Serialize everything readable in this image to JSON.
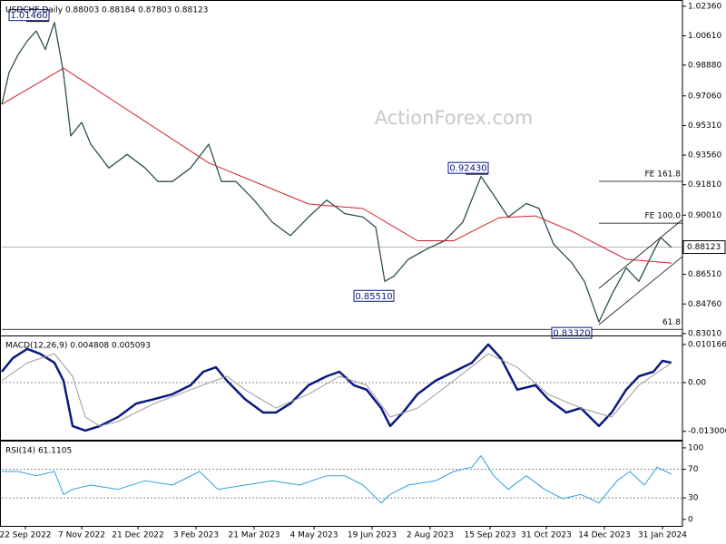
{
  "chart_data": [
    {
      "type": "line",
      "title": "USDCHF,Daily  0.88003 0.88184 0.87803 0.88123",
      "watermark": "ActionForex.com",
      "xlim": [
        0,
        375
      ],
      "ylim": [
        0.829,
        1.0262
      ],
      "yticks": [
        {
          "value": 1.0236,
          "label": "1.02360"
        },
        {
          "value": 1.0061,
          "label": "1.00610"
        },
        {
          "value": 0.9888,
          "label": "0.98880"
        },
        {
          "value": 0.9706,
          "label": "0.97060"
        },
        {
          "value": 0.9531,
          "label": "0.95310"
        },
        {
          "value": 0.9356,
          "label": "0.93560"
        },
        {
          "value": 0.9181,
          "label": "0.91810"
        },
        {
          "value": 0.9001,
          "label": "0.90010"
        },
        {
          "value": 0.8651,
          "label": "0.86510"
        },
        {
          "value": 0.8476,
          "label": "0.84760"
        },
        {
          "value": 0.8301,
          "label": "0.83010"
        }
      ],
      "series": [
        {
          "color": "#2f4f4f",
          "x": [
            0,
            4,
            9,
            14,
            19,
            24,
            29,
            34,
            38,
            44,
            49,
            59,
            69,
            79,
            86,
            94,
            104,
            114,
            121,
            129,
            139,
            149,
            159,
            169,
            179,
            189,
            199,
            206,
            211,
            216,
            224,
            234,
            244,
            254,
            264,
            271,
            279,
            289,
            296,
            304,
            314,
            321,
            329,
            336,
            344,
            351,
            356,
            363,
            369
          ],
          "values": [
            0.9656,
            0.9844,
            0.995,
            1.003,
            1.009,
            0.998,
            1.014,
            0.984,
            0.947,
            0.955,
            0.942,
            0.928,
            0.936,
            0.928,
            0.92,
            0.92,
            0.928,
            0.942,
            0.92,
            0.92,
            0.909,
            0.896,
            0.888,
            0.899,
            0.909,
            0.901,
            0.899,
            0.893,
            0.861,
            0.864,
            0.874,
            0.88,
            0.885,
            0.896,
            0.923,
            0.912,
            0.899,
            0.907,
            0.904,
            0.883,
            0.872,
            0.861,
            0.837,
            0.853,
            0.869,
            0.861,
            0.872,
            0.887,
            0.881
          ]
        },
        {
          "color": "#d0202a",
          "x": [
            0,
            34,
            114,
            169,
            199,
            229,
            249,
            274,
            294,
            314,
            344,
            369
          ],
          "values": [
            0.9656,
            0.987,
            0.931,
            0.9067,
            0.904,
            0.885,
            0.885,
            0.8986,
            0.8997,
            0.8906,
            0.874,
            0.8718
          ]
        }
      ],
      "channel": [
        {
          "x": [
            329,
            375
          ],
          "values": [
            0.8568,
            0.8975
          ]
        },
        {
          "x": [
            329,
            375
          ],
          "values": [
            0.8354,
            0.8756
          ]
        }
      ],
      "annotations": [
        {
          "label": "1.01460",
          "x": 15,
          "value": 1.0146
        },
        {
          "label": "0.92430",
          "x": 257,
          "value": 0.9243
        },
        {
          "label": "0.85510",
          "x": 205,
          "value": 0.8551
        },
        {
          "label": "0.83320",
          "x": 314,
          "value": 0.8332
        }
      ],
      "levels": [
        {
          "label": "FE 161.8",
          "value": 0.9201,
          "x": 329
        },
        {
          "label": "FE 100.0",
          "value": 0.8954,
          "x": 329
        },
        {
          "label": "61.8",
          "value": 0.8326,
          "x": 0
        }
      ],
      "last_price": {
        "value": 0.88123,
        "label": "0.88123"
      }
    },
    {
      "type": "line",
      "title": "MACD(12,26,9) 0.004808 0.005093",
      "xlim": [
        0,
        375
      ],
      "ylim": [
        -0.01525,
        0.0121
      ],
      "yticks": [
        0.010166,
        {
          "value": 0,
          "label": "0.00"
        },
        -0.013006
      ],
      "levels": [
        {
          "value": 0
        }
      ],
      "series": [
        {
          "color": "#0a1a80",
          "width": 2.5,
          "x": [
            0,
            6,
            14,
            21,
            29,
            34,
            39,
            46,
            54,
            64,
            74,
            84,
            94,
            104,
            111,
            118,
            124,
            134,
            144,
            151,
            159,
            169,
            179,
            186,
            194,
            201,
            209,
            214,
            221,
            229,
            239,
            249,
            259,
            268,
            275,
            284,
            294,
            301,
            311,
            319,
            329,
            336,
            344,
            351,
            359,
            364,
            369
          ],
          "values": [
            0.0029,
            0.0065,
            0.009,
            0.0077,
            0.0053,
            0.0005,
            -0.0116,
            -0.0128,
            -0.0116,
            -0.0092,
            -0.0056,
            -0.0044,
            -0.0031,
            -0.0007,
            0.0029,
            0.0041,
            0.0005,
            -0.0044,
            -0.008,
            -0.008,
            -0.0056,
            -0.0007,
            0.0017,
            0.0029,
            -0.0007,
            -0.0019,
            -0.0068,
            -0.0116,
            -0.008,
            -0.0031,
            0.0005,
            0.0029,
            0.0053,
            0.0102,
            0.0065,
            -0.0019,
            -0.0007,
            -0.0044,
            -0.008,
            -0.0068,
            -0.0116,
            -0.008,
            -0.0019,
            0.0017,
            0.0029,
            0.0058,
            0.0053
          ]
        },
        {
          "color": "#9a9a9a",
          "width": 1,
          "x": [
            0,
            14,
            29,
            39,
            46,
            54,
            64,
            84,
            104,
            124,
            134,
            151,
            169,
            186,
            201,
            214,
            229,
            249,
            268,
            284,
            301,
            319,
            336,
            351,
            369
          ],
          "values": [
            0.0005,
            0.0053,
            0.0077,
            0.0017,
            -0.0092,
            -0.0116,
            -0.0104,
            -0.0056,
            -0.0019,
            0.0017,
            -0.0019,
            -0.0068,
            -0.0031,
            0.0017,
            -0.0007,
            -0.0092,
            -0.0068,
            0.0005,
            0.0077,
            0.0041,
            -0.0031,
            -0.0068,
            -0.0092,
            -0.0007,
            0.0053
          ]
        }
      ]
    },
    {
      "type": "line",
      "title": "RSI(14) 61.1105",
      "xlim": [
        0,
        375
      ],
      "ylim": [
        -9,
        107.5
      ],
      "yticks": [
        100,
        70,
        30,
        0
      ],
      "levels": [
        {
          "value": 70
        },
        {
          "value": 30
        }
      ],
      "series": [
        {
          "color": "#2ea0e0",
          "width": 1,
          "x": [
            0,
            9,
            19,
            29,
            34,
            39,
            49,
            64,
            79,
            94,
            109,
            119,
            134,
            149,
            164,
            179,
            189,
            199,
            209,
            214,
            224,
            239,
            249,
            259,
            264,
            271,
            279,
            289,
            299,
            309,
            319,
            329,
            339,
            346,
            354,
            361,
            369
          ],
          "values": [
            67,
            67,
            61,
            67,
            35,
            42,
            48,
            42,
            54,
            48,
            67,
            42,
            48,
            54,
            48,
            61,
            61,
            48,
            23,
            35,
            48,
            54,
            67,
            73,
            89,
            61,
            42,
            61,
            42,
            29,
            35,
            23,
            54,
            67,
            48,
            73,
            63
          ]
        }
      ],
      "xticks": [
        {
          "value": 13,
          "label": "22 Sep 2022"
        },
        {
          "value": 44,
          "label": "7 Nov 2022"
        },
        {
          "value": 75,
          "label": "21 Dec 2022"
        },
        {
          "value": 107,
          "label": "3 Feb 2023"
        },
        {
          "value": 139,
          "label": "21 Mar 2023"
        },
        {
          "value": 172,
          "label": "4 May 2023"
        },
        {
          "value": 204,
          "label": "19 Jun 2023"
        },
        {
          "value": 236,
          "label": "2 Aug 2023"
        },
        {
          "value": 269,
          "label": "15 Sep 2023"
        },
        {
          "value": 300,
          "label": "31 Oct 2023"
        },
        {
          "value": 332,
          "label": "14 Dec 2023"
        },
        {
          "value": 364,
          "label": "31 Jan 2024"
        }
      ]
    }
  ]
}
